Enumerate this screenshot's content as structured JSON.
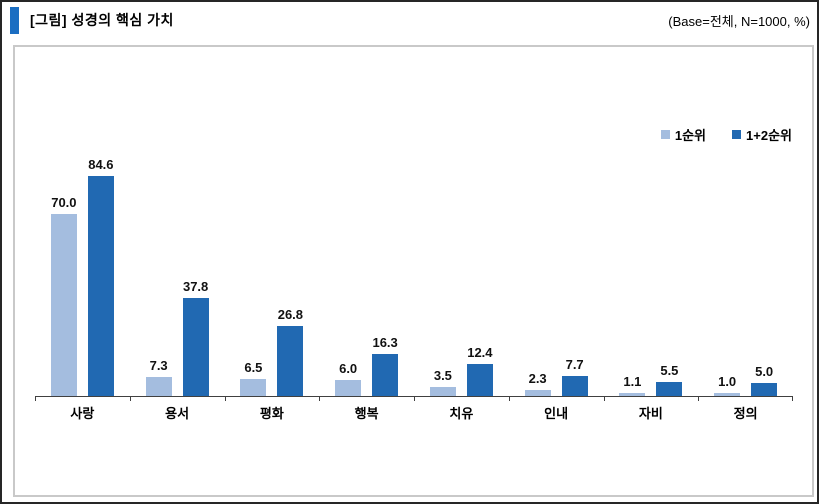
{
  "header": {
    "title": "[그림] 성경의 핵심 가치",
    "base_note": "(Base=전체,  N=1000,  %)",
    "marker_color": "#1b6ec2"
  },
  "chart_data": {
    "type": "bar",
    "title": "[그림] 성경의 핵심 가치",
    "subtitle": "(Base=전체, N=1000, %)",
    "categories": [
      "사랑",
      "용서",
      "평화",
      "행복",
      "치유",
      "인내",
      "자비",
      "정의"
    ],
    "series": [
      {
        "name": "1순위",
        "color": "#a4bddf",
        "values": [
          70.0,
          7.3,
          6.5,
          6.0,
          3.5,
          2.3,
          1.1,
          1.0
        ]
      },
      {
        "name": "1+2순위",
        "color": "#2169b2",
        "values": [
          84.6,
          37.8,
          26.8,
          16.3,
          12.4,
          7.7,
          5.5,
          5.0
        ]
      }
    ],
    "value_label_decimals": 1,
    "xlabel": "",
    "ylabel": "",
    "ylim": [
      0,
      100
    ],
    "grid": false,
    "y_axis_shown": false,
    "legend_position": "top-right",
    "axis_color": "#404040"
  }
}
